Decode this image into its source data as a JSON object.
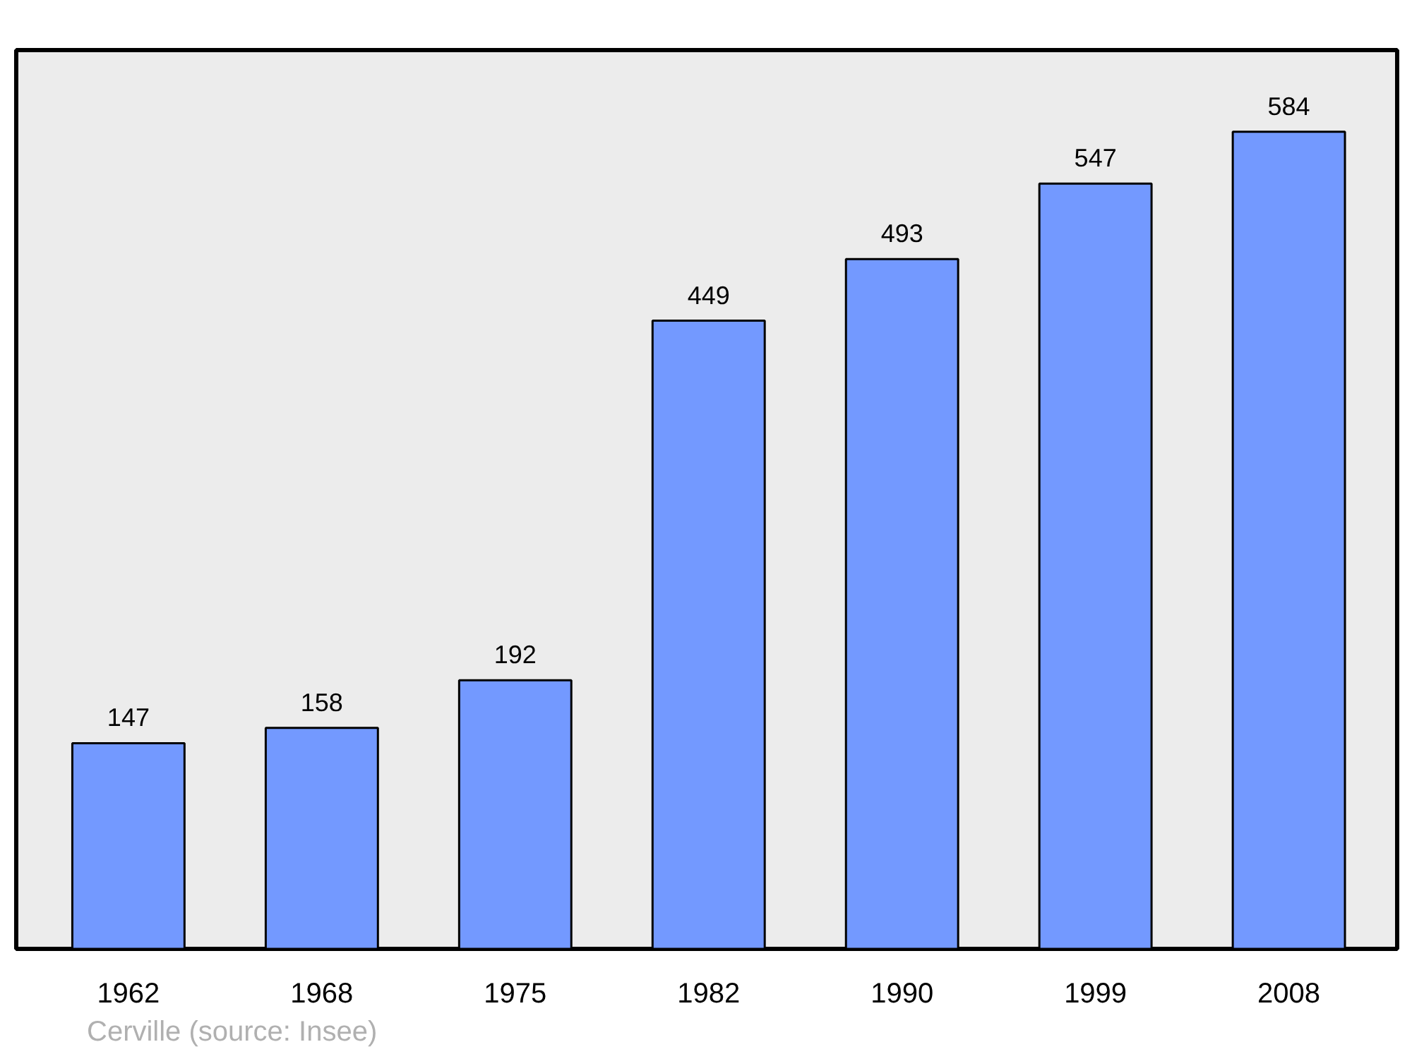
{
  "chart_data": {
    "type": "bar",
    "categories": [
      "1962",
      "1968",
      "1975",
      "1982",
      "1990",
      "1999",
      "2008"
    ],
    "values": [
      147,
      158,
      192,
      449,
      493,
      547,
      584
    ],
    "color": "#7399ff",
    "data_labels": true,
    "grid": false,
    "annotations": [
      "Cerville    (source: Insee)"
    ]
  }
}
